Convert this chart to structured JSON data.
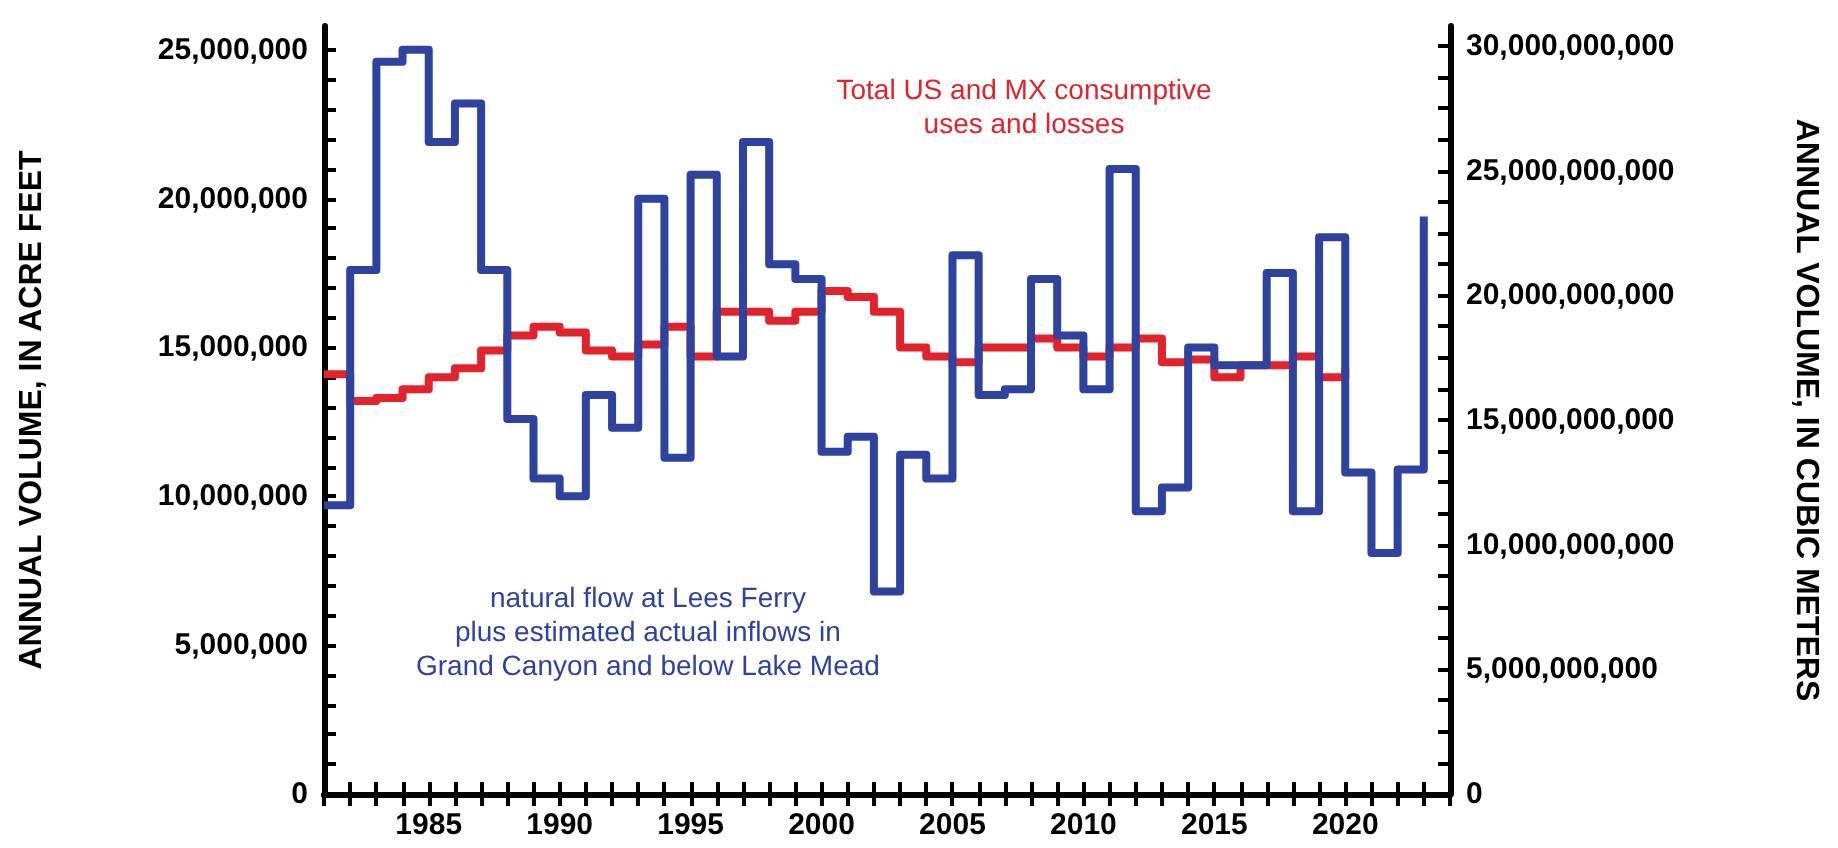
{
  "chart_data": {
    "type": "step",
    "ylabel": "ANNUAL VOLUME, IN ACRE FEET",
    "y2label": "ANNUAL VOLUME, IN CUBIC METERS",
    "annotations": [
      "natural flow at Lees Ferry\nplus estimated actual inflows in\nGrand Canyon and below Lake Mead",
      "Total US and MX consumptive\nuses and losses"
    ],
    "x": [
      1981,
      1982,
      1983,
      1984,
      1985,
      1986,
      1987,
      1988,
      1989,
      1990,
      1991,
      1992,
      1993,
      1994,
      1995,
      1996,
      1997,
      1998,
      1999,
      2000,
      2001,
      2002,
      2003,
      2004,
      2005,
      2006,
      2007,
      2008,
      2009,
      2010,
      2011,
      2012,
      2013,
      2014,
      2015,
      2016,
      2017,
      2018,
      2019,
      2020,
      2021,
      2022,
      2023
    ],
    "series": [
      {
        "color": "#2e43a0",
        "values": [
          9700000,
          17600000,
          24600000,
          25000000,
          21900000,
          23200000,
          17600000,
          12600000,
          10600000,
          10000000,
          13400000,
          12300000,
          20000000,
          11300000,
          20800000,
          14700000,
          21900000,
          17800000,
          17300000,
          11500000,
          12000000,
          6800000,
          11400000,
          10600000,
          18100000,
          13400000,
          13600000,
          17300000,
          15400000,
          13600000,
          21000000,
          9500000,
          10300000,
          15000000,
          14400000,
          14400000,
          17500000,
          9500000,
          18700000,
          10800000,
          8100000,
          10900000,
          19400000
        ]
      },
      {
        "color": "#e3232b",
        "x": [
          1981,
          1982,
          1983,
          1984,
          1985,
          1986,
          1987,
          1988,
          1989,
          1990,
          1991,
          1992,
          1993,
          1994,
          1995,
          1996,
          1997,
          1998,
          1999,
          2000,
          2001,
          2002,
          2003,
          2004,
          2005,
          2006,
          2007,
          2008,
          2009,
          2010,
          2011,
          2012,
          2013,
          2014,
          2015,
          2016,
          2017,
          2018,
          2019,
          2020
        ],
        "values": [
          14100000,
          13200000,
          13300000,
          13600000,
          14000000,
          14300000,
          14900000,
          15400000,
          15700000,
          15500000,
          14900000,
          14700000,
          15100000,
          15700000,
          14700000,
          16200000,
          16200000,
          15900000,
          16200000,
          16900000,
          16700000,
          16200000,
          15000000,
          14700000,
          14500000,
          15000000,
          15000000,
          15300000,
          15000000,
          14700000,
          15000000,
          15300000,
          14500000,
          14600000,
          14000000,
          14400000,
          14400000,
          14700000,
          14000000,
          14300000
        ]
      }
    ],
    "xlim": [
      1981,
      2024
    ],
    "xticks": [
      {
        "value": 1981,
        "label": null
      },
      {
        "value": 1982,
        "label": null
      },
      {
        "value": 1983,
        "label": null
      },
      {
        "value": 1984,
        "label": null
      },
      1985,
      {
        "value": 1986,
        "label": null
      },
      {
        "value": 1987,
        "label": null
      },
      {
        "value": 1988,
        "label": null
      },
      {
        "value": 1989,
        "label": null
      },
      1990,
      {
        "value": 1991,
        "label": null
      },
      {
        "value": 1992,
        "label": null
      },
      {
        "value": 1993,
        "label": null
      },
      {
        "value": 1994,
        "label": null
      },
      1995,
      {
        "value": 1996,
        "label": null
      },
      {
        "value": 1997,
        "label": null
      },
      {
        "value": 1998,
        "label": null
      },
      {
        "value": 1999,
        "label": null
      },
      2000,
      {
        "value": 2001,
        "label": null
      },
      {
        "value": 2002,
        "label": null
      },
      {
        "value": 2003,
        "label": null
      },
      {
        "value": 2004,
        "label": null
      },
      2005,
      {
        "value": 2006,
        "label": null
      },
      {
        "value": 2007,
        "label": null
      },
      {
        "value": 2008,
        "label": null
      },
      {
        "value": 2009,
        "label": null
      },
      2010,
      {
        "value": 2011,
        "label": null
      },
      {
        "value": 2012,
        "label": null
      },
      {
        "value": 2013,
        "label": null
      },
      {
        "value": 2014,
        "label": null
      },
      2015,
      {
        "value": 2016,
        "label": null
      },
      {
        "value": 2017,
        "label": null
      },
      {
        "value": 2018,
        "label": null
      },
      {
        "value": 2019,
        "label": null
      },
      2020,
      {
        "value": 2021,
        "label": null
      },
      {
        "value": 2022,
        "label": null
      },
      {
        "value": 2023,
        "label": null
      },
      {
        "value": 2024,
        "label": null
      }
    ],
    "ylim": [
      0,
      25800000
    ],
    "yticks": [
      0,
      {
        "value": 1000000,
        "label": null
      },
      {
        "value": 2000000,
        "label": null
      },
      {
        "value": 3000000,
        "label": null
      },
      {
        "value": 4000000,
        "label": null
      },
      {
        "value": 5000000,
        "label": "5,000,000"
      },
      {
        "value": 6000000,
        "label": null
      },
      {
        "value": 7000000,
        "label": null
      },
      {
        "value": 8000000,
        "label": null
      },
      {
        "value": 9000000,
        "label": null
      },
      {
        "value": 10000000,
        "label": "10,000,000"
      },
      {
        "value": 11000000,
        "label": null
      },
      {
        "value": 12000000,
        "label": null
      },
      {
        "value": 13000000,
        "label": null
      },
      {
        "value": 14000000,
        "label": null
      },
      {
        "value": 15000000,
        "label": "15,000,000"
      },
      {
        "value": 16000000,
        "label": null
      },
      {
        "value": 17000000,
        "label": null
      },
      {
        "value": 18000000,
        "label": null
      },
      {
        "value": 19000000,
        "label": null
      },
      {
        "value": 20000000,
        "label": "20,000,000"
      },
      {
        "value": 21000000,
        "label": null
      },
      {
        "value": 22000000,
        "label": null
      },
      {
        "value": 23000000,
        "label": null
      },
      {
        "value": 24000000,
        "label": null
      },
      {
        "value": 25000000,
        "label": "25,000,000"
      }
    ],
    "y2lim": [
      0,
      30800000000
    ],
    "y2ticks": [
      0,
      {
        "value": 1250000000,
        "label": null
      },
      {
        "value": 2500000000,
        "label": null
      },
      {
        "value": 3750000000,
        "label": null
      },
      {
        "value": 5000000000,
        "label": "5,000,000,000"
      },
      {
        "value": 6250000000,
        "label": null
      },
      {
        "value": 7500000000,
        "label": null
      },
      {
        "value": 8750000000,
        "label": null
      },
      {
        "value": 10000000000,
        "label": "10,000,000,000"
      },
      {
        "value": 11250000000,
        "label": null
      },
      {
        "value": 12500000000,
        "label": null
      },
      {
        "value": 13750000000,
        "label": null
      },
      {
        "value": 15000000000,
        "label": "15,000,000,000"
      },
      {
        "value": 16250000000,
        "label": null
      },
      {
        "value": 17500000000,
        "label": null
      },
      {
        "value": 18750000000,
        "label": null
      },
      {
        "value": 20000000000,
        "label": "20,000,000,000"
      },
      {
        "value": 21250000000,
        "label": null
      },
      {
        "value": 22500000000,
        "label": null
      },
      {
        "value": 23750000000,
        "label": null
      },
      {
        "value": 25000000000,
        "label": "25,000,000,000"
      },
      {
        "value": 26250000000,
        "label": null
      },
      {
        "value": 27500000000,
        "label": null
      },
      {
        "value": 28750000000,
        "label": null
      },
      {
        "value": 30000000000,
        "label": "30,000,000,000"
      }
    ],
    "grid": false,
    "marker": "none",
    "line_style": "solid"
  }
}
